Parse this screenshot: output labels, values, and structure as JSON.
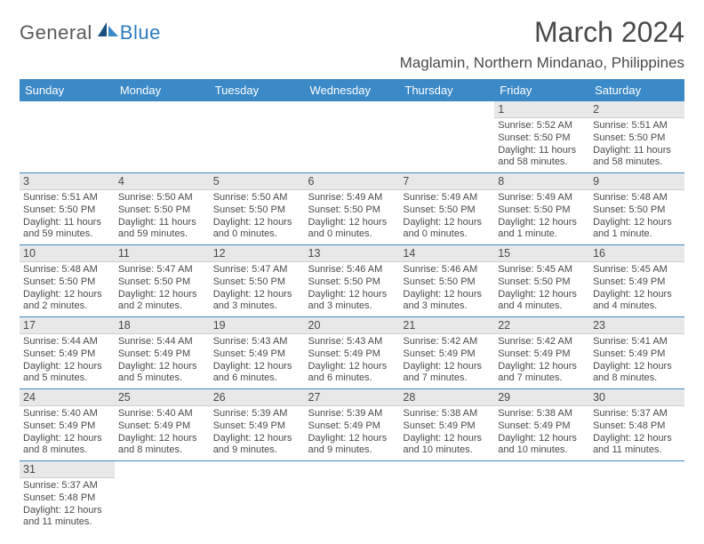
{
  "logo": {
    "general": "General",
    "blue": "Blue"
  },
  "title": "March 2024",
  "location": "Maglamin, Northern Mindanao, Philippines",
  "colors": {
    "header_bg": "#3b89c7",
    "header_text": "#ffffff",
    "daynum_bg": "#e8e8e8",
    "border": "#3b89c7",
    "text": "#4a4a4a",
    "logo_blue": "#2f7bbf"
  },
  "weekdays": [
    "Sunday",
    "Monday",
    "Tuesday",
    "Wednesday",
    "Thursday",
    "Friday",
    "Saturday"
  ],
  "weeks": [
    [
      null,
      null,
      null,
      null,
      null,
      {
        "n": "1",
        "sr": "Sunrise: 5:52 AM",
        "ss": "Sunset: 5:50 PM",
        "dl": "Daylight: 11 hours and 58 minutes."
      },
      {
        "n": "2",
        "sr": "Sunrise: 5:51 AM",
        "ss": "Sunset: 5:50 PM",
        "dl": "Daylight: 11 hours and 58 minutes."
      }
    ],
    [
      {
        "n": "3",
        "sr": "Sunrise: 5:51 AM",
        "ss": "Sunset: 5:50 PM",
        "dl": "Daylight: 11 hours and 59 minutes."
      },
      {
        "n": "4",
        "sr": "Sunrise: 5:50 AM",
        "ss": "Sunset: 5:50 PM",
        "dl": "Daylight: 11 hours and 59 minutes."
      },
      {
        "n": "5",
        "sr": "Sunrise: 5:50 AM",
        "ss": "Sunset: 5:50 PM",
        "dl": "Daylight: 12 hours and 0 minutes."
      },
      {
        "n": "6",
        "sr": "Sunrise: 5:49 AM",
        "ss": "Sunset: 5:50 PM",
        "dl": "Daylight: 12 hours and 0 minutes."
      },
      {
        "n": "7",
        "sr": "Sunrise: 5:49 AM",
        "ss": "Sunset: 5:50 PM",
        "dl": "Daylight: 12 hours and 0 minutes."
      },
      {
        "n": "8",
        "sr": "Sunrise: 5:49 AM",
        "ss": "Sunset: 5:50 PM",
        "dl": "Daylight: 12 hours and 1 minute."
      },
      {
        "n": "9",
        "sr": "Sunrise: 5:48 AM",
        "ss": "Sunset: 5:50 PM",
        "dl": "Daylight: 12 hours and 1 minute."
      }
    ],
    [
      {
        "n": "10",
        "sr": "Sunrise: 5:48 AM",
        "ss": "Sunset: 5:50 PM",
        "dl": "Daylight: 12 hours and 2 minutes."
      },
      {
        "n": "11",
        "sr": "Sunrise: 5:47 AM",
        "ss": "Sunset: 5:50 PM",
        "dl": "Daylight: 12 hours and 2 minutes."
      },
      {
        "n": "12",
        "sr": "Sunrise: 5:47 AM",
        "ss": "Sunset: 5:50 PM",
        "dl": "Daylight: 12 hours and 3 minutes."
      },
      {
        "n": "13",
        "sr": "Sunrise: 5:46 AM",
        "ss": "Sunset: 5:50 PM",
        "dl": "Daylight: 12 hours and 3 minutes."
      },
      {
        "n": "14",
        "sr": "Sunrise: 5:46 AM",
        "ss": "Sunset: 5:50 PM",
        "dl": "Daylight: 12 hours and 3 minutes."
      },
      {
        "n": "15",
        "sr": "Sunrise: 5:45 AM",
        "ss": "Sunset: 5:50 PM",
        "dl": "Daylight: 12 hours and 4 minutes."
      },
      {
        "n": "16",
        "sr": "Sunrise: 5:45 AM",
        "ss": "Sunset: 5:49 PM",
        "dl": "Daylight: 12 hours and 4 minutes."
      }
    ],
    [
      {
        "n": "17",
        "sr": "Sunrise: 5:44 AM",
        "ss": "Sunset: 5:49 PM",
        "dl": "Daylight: 12 hours and 5 minutes."
      },
      {
        "n": "18",
        "sr": "Sunrise: 5:44 AM",
        "ss": "Sunset: 5:49 PM",
        "dl": "Daylight: 12 hours and 5 minutes."
      },
      {
        "n": "19",
        "sr": "Sunrise: 5:43 AM",
        "ss": "Sunset: 5:49 PM",
        "dl": "Daylight: 12 hours and 6 minutes."
      },
      {
        "n": "20",
        "sr": "Sunrise: 5:43 AM",
        "ss": "Sunset: 5:49 PM",
        "dl": "Daylight: 12 hours and 6 minutes."
      },
      {
        "n": "21",
        "sr": "Sunrise: 5:42 AM",
        "ss": "Sunset: 5:49 PM",
        "dl": "Daylight: 12 hours and 7 minutes."
      },
      {
        "n": "22",
        "sr": "Sunrise: 5:42 AM",
        "ss": "Sunset: 5:49 PM",
        "dl": "Daylight: 12 hours and 7 minutes."
      },
      {
        "n": "23",
        "sr": "Sunrise: 5:41 AM",
        "ss": "Sunset: 5:49 PM",
        "dl": "Daylight: 12 hours and 8 minutes."
      }
    ],
    [
      {
        "n": "24",
        "sr": "Sunrise: 5:40 AM",
        "ss": "Sunset: 5:49 PM",
        "dl": "Daylight: 12 hours and 8 minutes."
      },
      {
        "n": "25",
        "sr": "Sunrise: 5:40 AM",
        "ss": "Sunset: 5:49 PM",
        "dl": "Daylight: 12 hours and 8 minutes."
      },
      {
        "n": "26",
        "sr": "Sunrise: 5:39 AM",
        "ss": "Sunset: 5:49 PM",
        "dl": "Daylight: 12 hours and 9 minutes."
      },
      {
        "n": "27",
        "sr": "Sunrise: 5:39 AM",
        "ss": "Sunset: 5:49 PM",
        "dl": "Daylight: 12 hours and 9 minutes."
      },
      {
        "n": "28",
        "sr": "Sunrise: 5:38 AM",
        "ss": "Sunset: 5:49 PM",
        "dl": "Daylight: 12 hours and 10 minutes."
      },
      {
        "n": "29",
        "sr": "Sunrise: 5:38 AM",
        "ss": "Sunset: 5:49 PM",
        "dl": "Daylight: 12 hours and 10 minutes."
      },
      {
        "n": "30",
        "sr": "Sunrise: 5:37 AM",
        "ss": "Sunset: 5:48 PM",
        "dl": "Daylight: 12 hours and 11 minutes."
      }
    ],
    [
      {
        "n": "31",
        "sr": "Sunrise: 5:37 AM",
        "ss": "Sunset: 5:48 PM",
        "dl": "Daylight: 12 hours and 11 minutes."
      },
      null,
      null,
      null,
      null,
      null,
      null
    ]
  ]
}
